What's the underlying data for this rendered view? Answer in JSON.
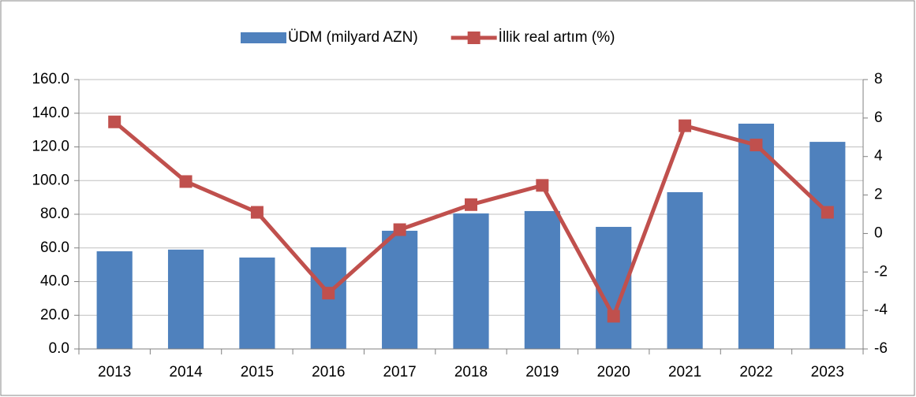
{
  "chart_data": {
    "type": "combo",
    "categories": [
      "2013",
      "2014",
      "2015",
      "2016",
      "2017",
      "2018",
      "2019",
      "2020",
      "2021",
      "2022",
      "2023"
    ],
    "series": [
      {
        "name": "ÜDM (milyard AZN)",
        "type": "bar",
        "color": "#4f81bd",
        "values": [
          58.0,
          59.0,
          54.3,
          60.4,
          70.2,
          80.5,
          81.9,
          72.5,
          93.1,
          133.8,
          123.0
        ]
      },
      {
        "name": "İllik real artım (%)",
        "type": "line",
        "axis": "y2",
        "color": "#c0504d",
        "values": [
          5.8,
          2.7,
          1.1,
          -3.1,
          0.2,
          1.5,
          2.5,
          -4.3,
          5.6,
          4.6,
          1.1
        ]
      }
    ],
    "ylim": [
      0,
      160
    ],
    "yticks": [
      {
        "value": 0,
        "label": "0.0"
      },
      {
        "value": 20,
        "label": "20.0"
      },
      {
        "value": 40,
        "label": "40.0"
      },
      {
        "value": 60,
        "label": "60.0"
      },
      {
        "value": 80,
        "label": "80.0"
      },
      {
        "value": 100,
        "label": "100.0"
      },
      {
        "value": 120,
        "label": "120.0"
      },
      {
        "value": 140,
        "label": "140.0"
      },
      {
        "value": 160,
        "label": "160.0"
      }
    ],
    "y2lim": [
      -6,
      8
    ],
    "y2ticks": [
      -6,
      -4,
      -2,
      0,
      2,
      4,
      6,
      8
    ],
    "grid": true,
    "legend": "top"
  }
}
